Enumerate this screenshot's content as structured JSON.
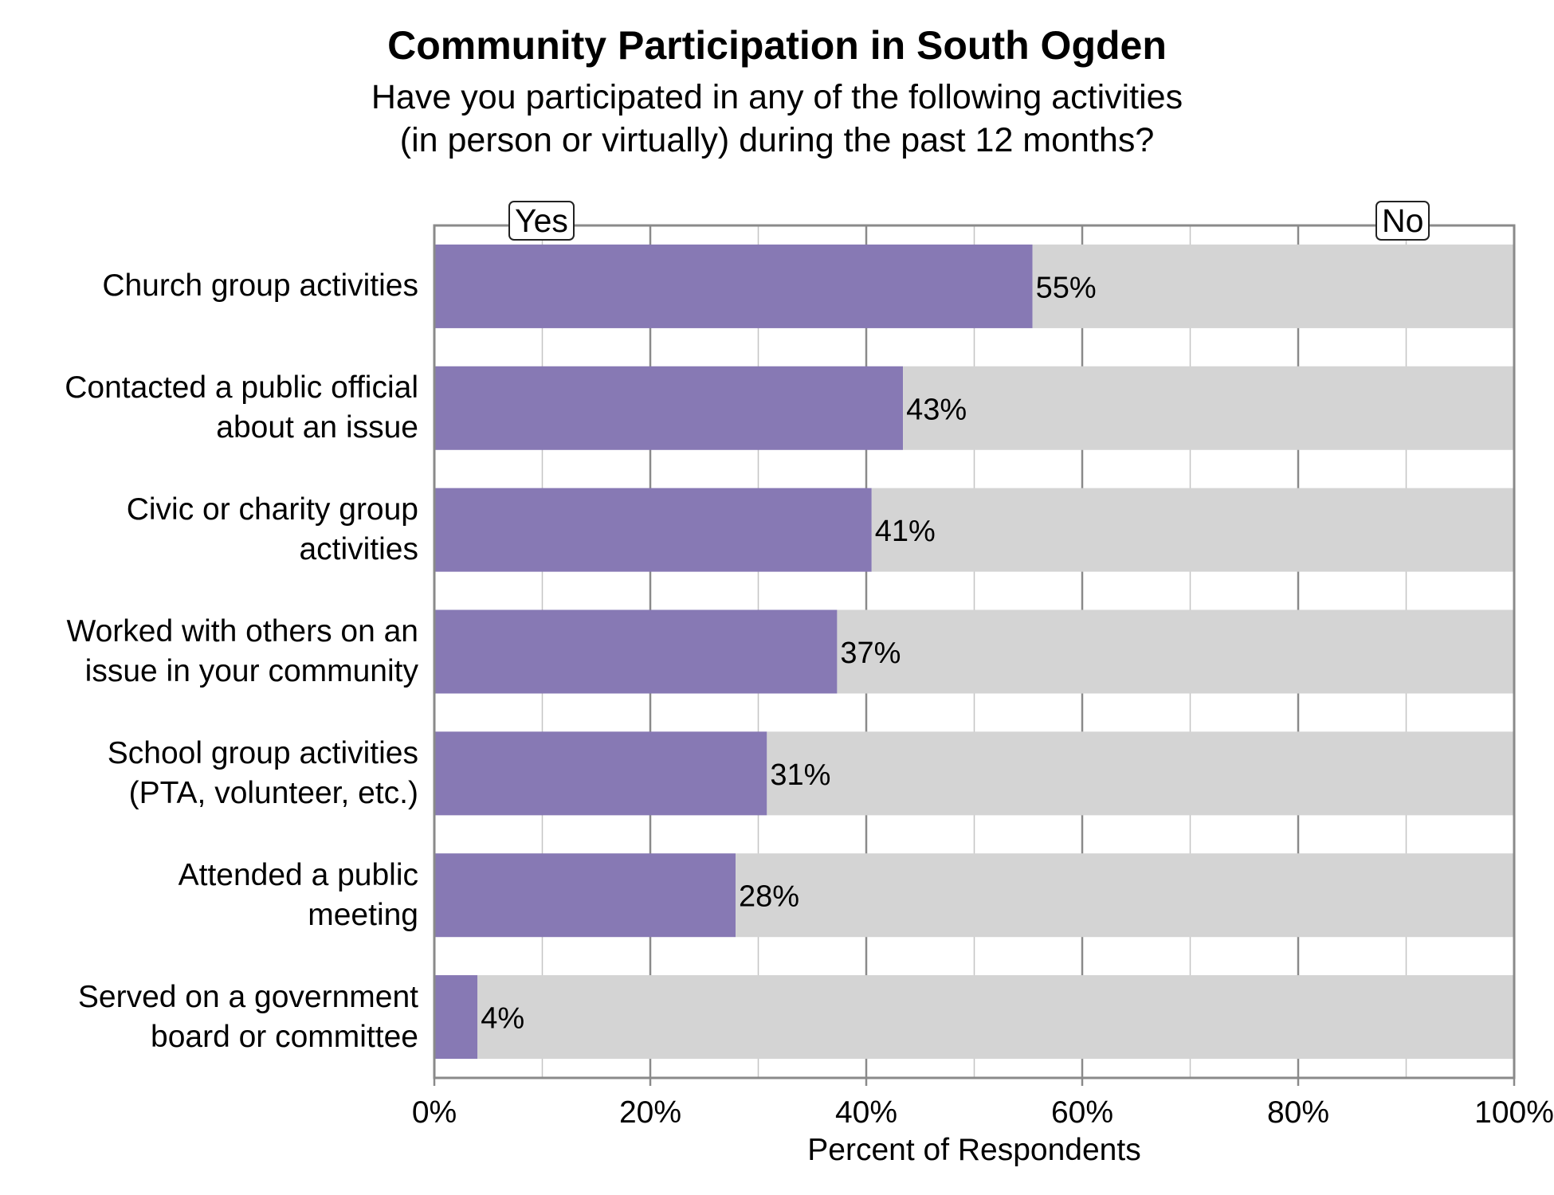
{
  "chart_data": {
    "type": "bar",
    "orientation": "horizontal",
    "stacked": true,
    "title": "Community Participation in South Ogden",
    "subtitle": [
      "Have you participated in any of the following activities",
      "(in person or virtually) during the past 12 months?"
    ],
    "categories": [
      [
        "Church group activities"
      ],
      [
        "Contacted a public official",
        "about an issue"
      ],
      [
        "Civic or charity group",
        "activities"
      ],
      [
        "Worked with others on an",
        "issue in your community"
      ],
      [
        "School group activities",
        "(PTA, volunteer, etc.)"
      ],
      [
        "Attended a public",
        "meeting"
      ],
      [
        "Served on a government",
        "board or committee"
      ]
    ],
    "series": [
      {
        "name": "Yes",
        "values": [
          55.4,
          43.4,
          40.5,
          37.3,
          30.8,
          27.9,
          4.0
        ],
        "color": "#8779b4"
      },
      {
        "name": "No",
        "values": [
          44.6,
          56.6,
          59.5,
          62.7,
          69.2,
          72.1,
          96.0
        ],
        "color": "#d4d4d4"
      }
    ],
    "data_labels": [
      "55%",
      "43%",
      "41%",
      "37%",
      "31%",
      "28%",
      "4%"
    ],
    "xlabel": "Percent of Respondents",
    "xlim": [
      0,
      100
    ],
    "xticks": [
      "0%",
      "20%",
      "40%",
      "60%",
      "80%",
      "100%"
    ],
    "grid": true,
    "legend_position": "top"
  }
}
